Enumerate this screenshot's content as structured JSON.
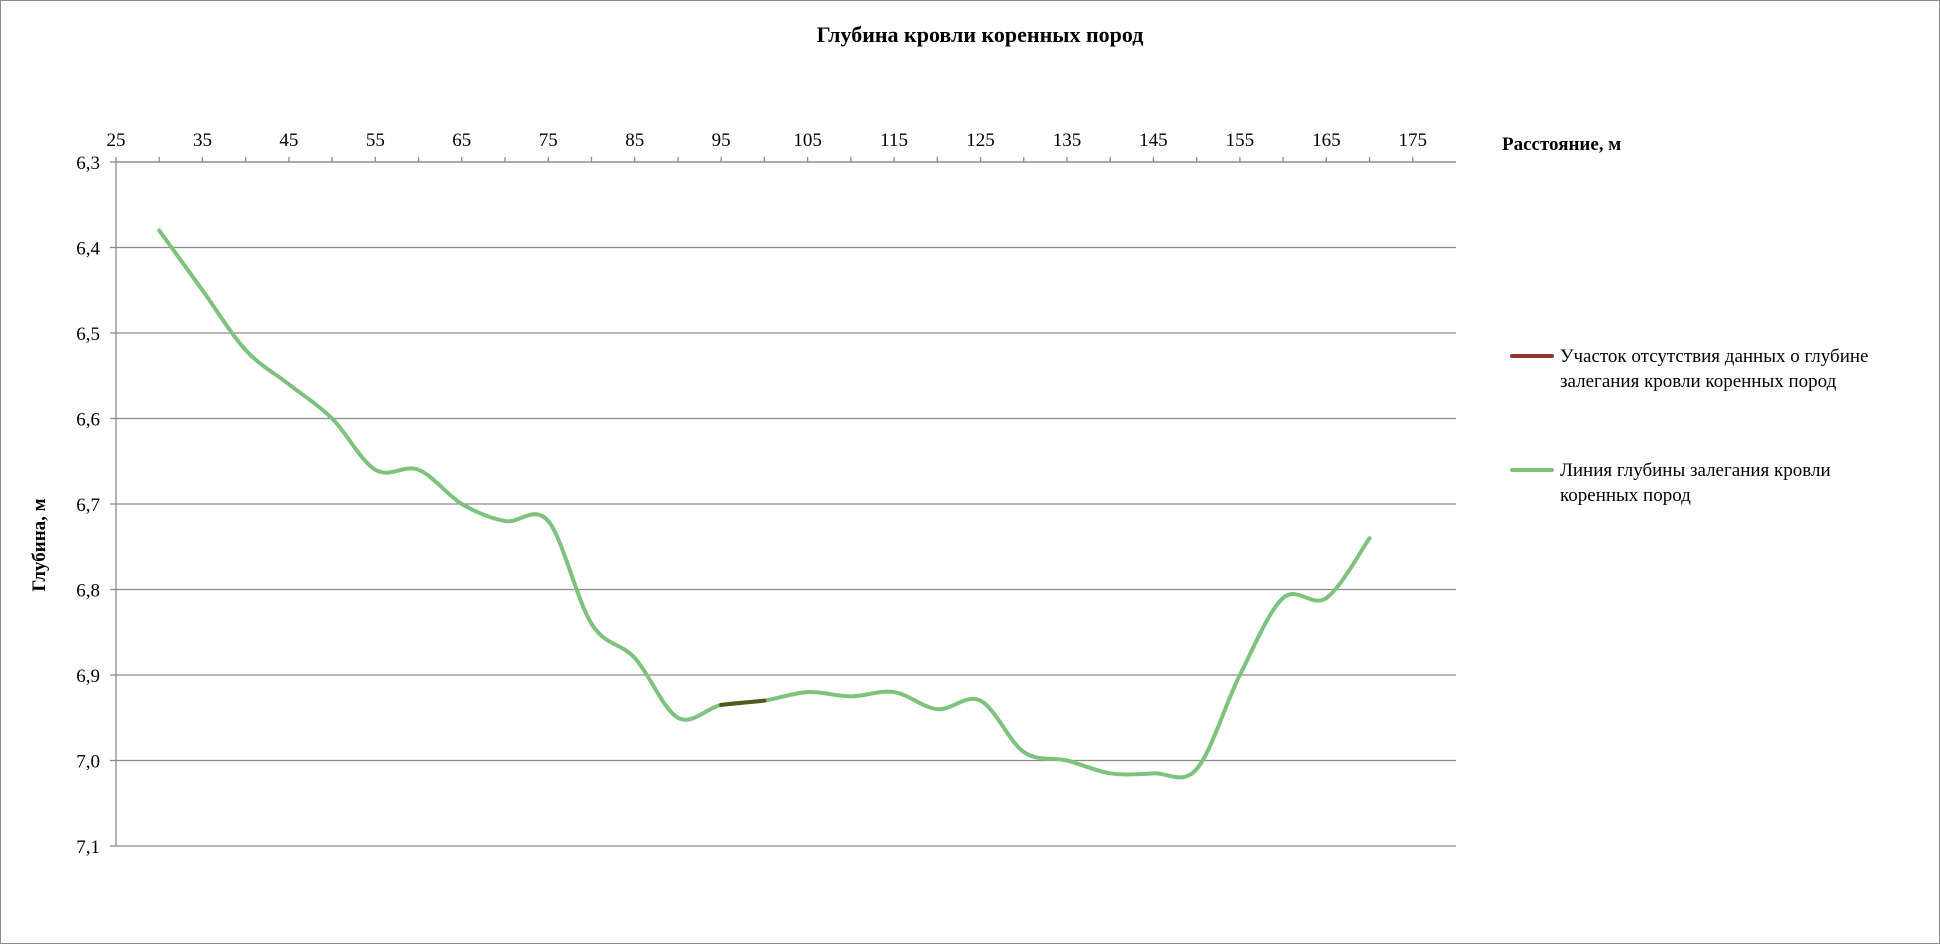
{
  "chart_data": {
    "type": "line",
    "title": "Глубина кровли коренных пород",
    "xlabel": "Расстояние, м",
    "ylabel": "Глубина, м",
    "xlim": [
      25,
      180
    ],
    "ylim": [
      6.3,
      7.1
    ],
    "y_inverted": true,
    "x_axis_position": "top",
    "grid": "horizontal",
    "legend_position": "right",
    "x_ticks": [
      "25",
      "35",
      "45",
      "55",
      "65",
      "75",
      "85",
      "95",
      "105",
      "115",
      "125",
      "135",
      "145",
      "155",
      "165",
      "175"
    ],
    "y_ticks": [
      "6,3",
      "6,4",
      "6,5",
      "6,6",
      "6,7",
      "6,8",
      "6,9",
      "7,0",
      "7,1"
    ],
    "series": [
      {
        "name": "Участок отсутствия данных о глубине залегания кровли коренных пород",
        "color": "#943634",
        "segment_color": "#4f5a1c",
        "x": [
          95,
          100
        ],
        "y": [
          6.935,
          6.93
        ]
      },
      {
        "name": "Линия глубины залегания кровли коренных пород",
        "color": "#7dc27d",
        "x": [
          30,
          35,
          40,
          45,
          50,
          55,
          60,
          65,
          70,
          75,
          80,
          85,
          90,
          95,
          100,
          105,
          110,
          115,
          120,
          125,
          130,
          135,
          140,
          145,
          150,
          155,
          160,
          165,
          170
        ],
        "y": [
          6.38,
          6.45,
          6.52,
          6.56,
          6.6,
          6.66,
          6.66,
          6.7,
          6.72,
          6.72,
          6.84,
          6.88,
          6.95,
          6.935,
          6.93,
          6.92,
          6.925,
          6.92,
          6.94,
          6.93,
          6.99,
          7.0,
          7.015,
          7.015,
          7.01,
          6.9,
          6.81,
          6.81,
          6.74
        ]
      }
    ]
  }
}
